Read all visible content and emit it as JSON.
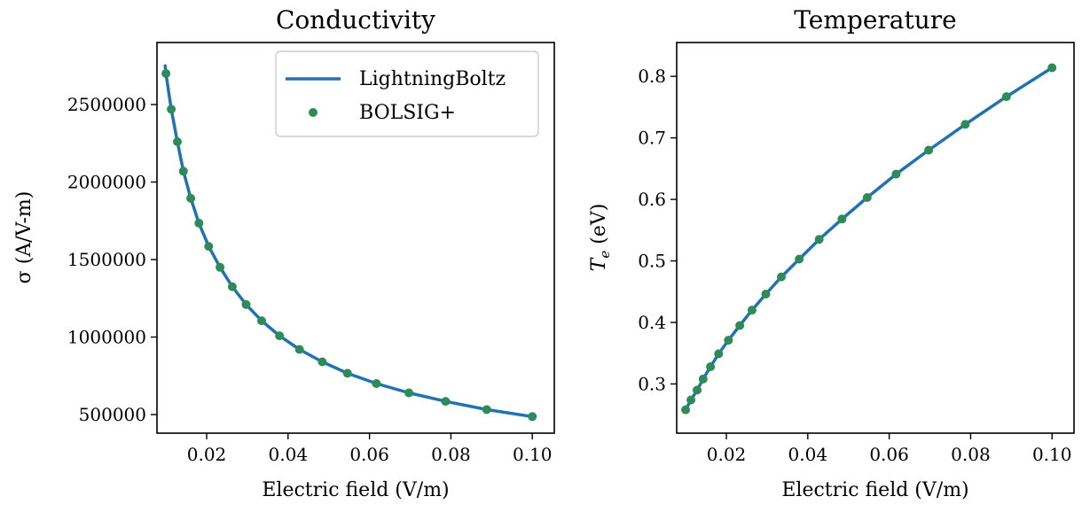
{
  "colors": {
    "line": "#2171b5",
    "marker": "#2e8b57",
    "axis": "#000000",
    "legend_border": "#cccccc"
  },
  "chart_data": [
    {
      "type": "line",
      "title": "Conductivity",
      "xlabel": "Electric field (V/m)",
      "ylabel": "σ (A/V-m)",
      "xlim": [
        0.0078,
        0.1054
      ],
      "ylim": [
        380000,
        2900000
      ],
      "xticks": [
        0.02,
        0.04,
        0.06,
        0.08,
        0.1
      ],
      "xtick_labels": [
        "0.02",
        "0.04",
        "0.06",
        "0.08",
        "0.10"
      ],
      "yticks": [
        500000,
        1000000,
        1500000,
        2000000,
        2500000
      ],
      "ytick_labels": [
        "500000",
        "1000000",
        "1500000",
        "2000000",
        "2500000"
      ],
      "legend": {
        "position": "top-right",
        "entries": [
          {
            "label": "LightningBoltz",
            "kind": "line"
          },
          {
            "label": "BOLSIG+",
            "kind": "marker"
          }
        ]
      },
      "series": [
        {
          "name": "LightningBoltz",
          "kind": "line",
          "x": [
            0.0098,
            0.01,
            0.0113,
            0.0128,
            0.0143,
            0.0161,
            0.0181,
            0.0205,
            0.0233,
            0.0263,
            0.0297,
            0.0335,
            0.0379,
            0.0428,
            0.0484,
            0.0546,
            0.0617,
            0.0697,
            0.0787,
            0.0888,
            0.1
          ],
          "y": [
            2750000,
            2700000,
            2470000,
            2260000,
            2070000,
            1895000,
            1735000,
            1585000,
            1450000,
            1325000,
            1210000,
            1105000,
            1008000,
            920000,
            840000,
            766000,
            700000,
            640000,
            585000,
            532000,
            487000
          ]
        },
        {
          "name": "BOLSIG+",
          "kind": "marker",
          "x": [
            0.01,
            0.0113,
            0.0128,
            0.0143,
            0.0161,
            0.0181,
            0.0205,
            0.0233,
            0.0263,
            0.0297,
            0.0335,
            0.0379,
            0.0428,
            0.0484,
            0.0546,
            0.0617,
            0.0697,
            0.0787,
            0.0888,
            0.1
          ],
          "y": [
            2700000,
            2470000,
            2260000,
            2070000,
            1895000,
            1735000,
            1585000,
            1450000,
            1325000,
            1210000,
            1105000,
            1008000,
            920000,
            840000,
            766000,
            700000,
            640000,
            585000,
            532000,
            487000
          ]
        }
      ]
    },
    {
      "type": "line",
      "title": "Temperature",
      "xlabel": "Electric field (V/m)",
      "ylabel_main": "T",
      "ylabel_sub": "e",
      "ylabel_rest": " (eV)",
      "xlim": [
        0.0078,
        0.1054
      ],
      "ylim": [
        0.22,
        0.855
      ],
      "xticks": [
        0.02,
        0.04,
        0.06,
        0.08,
        0.1
      ],
      "xtick_labels": [
        "0.02",
        "0.04",
        "0.06",
        "0.08",
        "0.10"
      ],
      "yticks": [
        0.3,
        0.4,
        0.5,
        0.6,
        0.7,
        0.8
      ],
      "ytick_labels": [
        "0.3",
        "0.4",
        "0.5",
        "0.6",
        "0.7",
        "0.8"
      ],
      "series": [
        {
          "name": "LightningBoltz",
          "kind": "line",
          "x": [
            0.01,
            0.0113,
            0.0128,
            0.0143,
            0.0161,
            0.0181,
            0.0205,
            0.0233,
            0.0263,
            0.0297,
            0.0335,
            0.0379,
            0.0428,
            0.0484,
            0.0546,
            0.0617,
            0.0697,
            0.0787,
            0.0888,
            0.1
          ],
          "y": [
            0.258,
            0.274,
            0.29,
            0.308,
            0.328,
            0.349,
            0.371,
            0.395,
            0.42,
            0.446,
            0.474,
            0.503,
            0.535,
            0.568,
            0.603,
            0.641,
            0.68,
            0.722,
            0.767,
            0.814
          ]
        },
        {
          "name": "BOLSIG+",
          "kind": "marker",
          "x": [
            0.01,
            0.0113,
            0.0128,
            0.0143,
            0.0161,
            0.0181,
            0.0205,
            0.0233,
            0.0263,
            0.0297,
            0.0335,
            0.0379,
            0.0428,
            0.0484,
            0.0546,
            0.0617,
            0.0697,
            0.0787,
            0.0888,
            0.1
          ],
          "y": [
            0.258,
            0.274,
            0.29,
            0.308,
            0.328,
            0.349,
            0.371,
            0.395,
            0.42,
            0.446,
            0.474,
            0.503,
            0.535,
            0.568,
            0.603,
            0.641,
            0.68,
            0.722,
            0.767,
            0.814
          ]
        }
      ]
    }
  ]
}
